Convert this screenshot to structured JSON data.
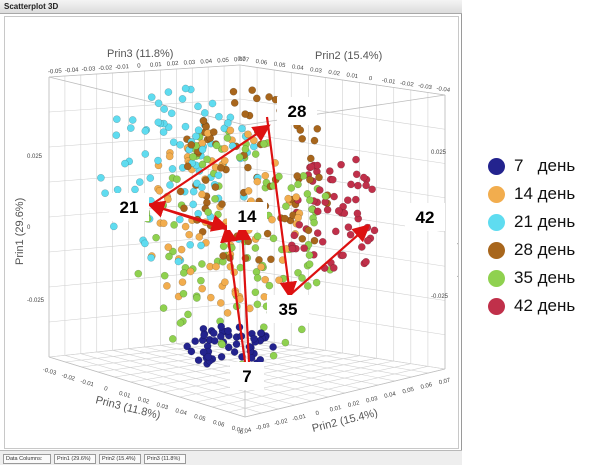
{
  "window": {
    "title": "Scatterplot 3D"
  },
  "status": {
    "cells": [
      "Data Columns:",
      "Prin1 (29.6%)",
      "Prin2 (15.4%)",
      "Prin3 (11.8%)"
    ]
  },
  "chart_data": {
    "type": "scatter",
    "title": "",
    "axes": {
      "prin1": "Prin1 (29.6%)",
      "prin2": "Prin2 (15.4%)",
      "prin3": "Prin3 (11.8%)"
    },
    "prin1_ticks": [
      "0.025",
      "0",
      "-0.025"
    ],
    "top_left_ticks": [
      "-0.05",
      "-0.04",
      "-0.03",
      "-0.02",
      "-0.01",
      "0",
      "0.01",
      "0.02",
      "0.03",
      "0.04",
      "0.05",
      "0.07"
    ],
    "top_right_ticks": [
      "0.07",
      "0.06",
      "0.05",
      "0.04",
      "0.03",
      "0.02",
      "0.01",
      "0",
      "-0.01",
      "-0.02",
      "-0.03",
      "-0.04"
    ],
    "bottom_left_ticks": [
      "-0.03",
      "-0.02",
      "-0.01",
      "0",
      "0.01",
      "0.02",
      "0.03",
      "0.04",
      "0.05",
      "0.06",
      "0.07"
    ],
    "bottom_right_ticks": [
      "-0.04",
      "-0.03",
      "-0.02",
      "-0.01",
      "0",
      "0.01",
      "0.02",
      "0.03",
      "0.04",
      "0.05",
      "0.06",
      "0.07"
    ],
    "series": [
      {
        "name": "7   день",
        "color": "#23238e"
      },
      {
        "name": "14 день",
        "color": "#f2ad4e"
      },
      {
        "name": "21 день",
        "color": "#5fdcf0"
      },
      {
        "name": "28 день",
        "color": "#a8661c"
      },
      {
        "name": "35 день",
        "color": "#8fd14f"
      },
      {
        "name": "42 день",
        "color": "#c0304a"
      }
    ],
    "annotations": [
      {
        "label": "7",
        "day": 7
      },
      {
        "label": "14",
        "day": 14
      },
      {
        "label": "21",
        "day": 21
      },
      {
        "label": "28",
        "day": 28
      },
      {
        "label": "35",
        "day": 35
      },
      {
        "label": "42",
        "day": 42
      }
    ],
    "trajectory": [
      "7",
      "14",
      "21",
      "28",
      "35",
      "42"
    ],
    "arrow_color": "#dd1111",
    "grid": true,
    "legend_position": "right"
  }
}
